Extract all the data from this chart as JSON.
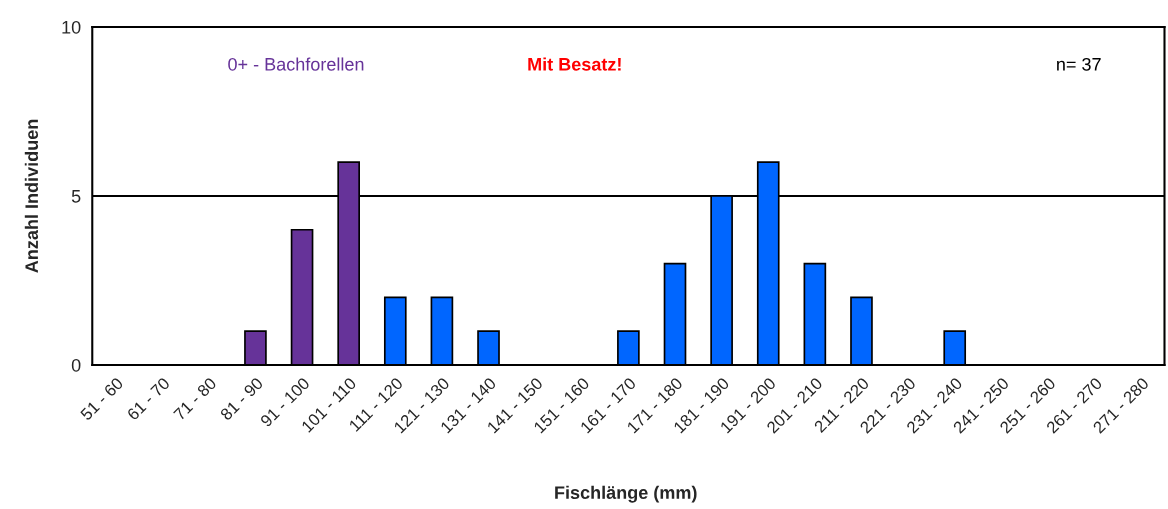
{
  "chart_data": {
    "type": "bar",
    "xlabel": "Fischlänge (mm)",
    "ylabel": "Anzahl Individuen",
    "categories": [
      "51 - 60",
      "61 - 70",
      "71 - 80",
      "81 - 90",
      "91 - 100",
      "101 - 110",
      "111 - 120",
      "121 - 130",
      "131 - 140",
      "141 - 150",
      "151 - 160",
      "161 - 170",
      "171 - 180",
      "181 - 190",
      "191 - 200",
      "201 - 210",
      "211 - 220",
      "221 - 230",
      "231 - 240",
      "241 - 250",
      "251 - 260",
      "261 - 270",
      "271 - 280"
    ],
    "values": [
      0,
      0,
      0,
      1,
      4,
      6,
      2,
      2,
      1,
      0,
      0,
      1,
      3,
      5,
      6,
      3,
      2,
      0,
      1,
      0,
      0,
      0,
      0
    ],
    "colors": [
      null,
      null,
      null,
      "#663399",
      "#663399",
      "#663399",
      "#0066ff",
      "#0066ff",
      "#0066ff",
      null,
      null,
      "#0066ff",
      "#0066ff",
      "#0066ff",
      "#0066ff",
      "#0066ff",
      "#0066ff",
      null,
      "#0066ff",
      null,
      null,
      null,
      null
    ],
    "ylim": [
      0,
      10
    ],
    "yticks": [
      0,
      5,
      10
    ],
    "grid": "y",
    "legend": false,
    "annotations": [
      "0+ - Bachforellen",
      "Mit Besatz!",
      "n= 37"
    ]
  }
}
